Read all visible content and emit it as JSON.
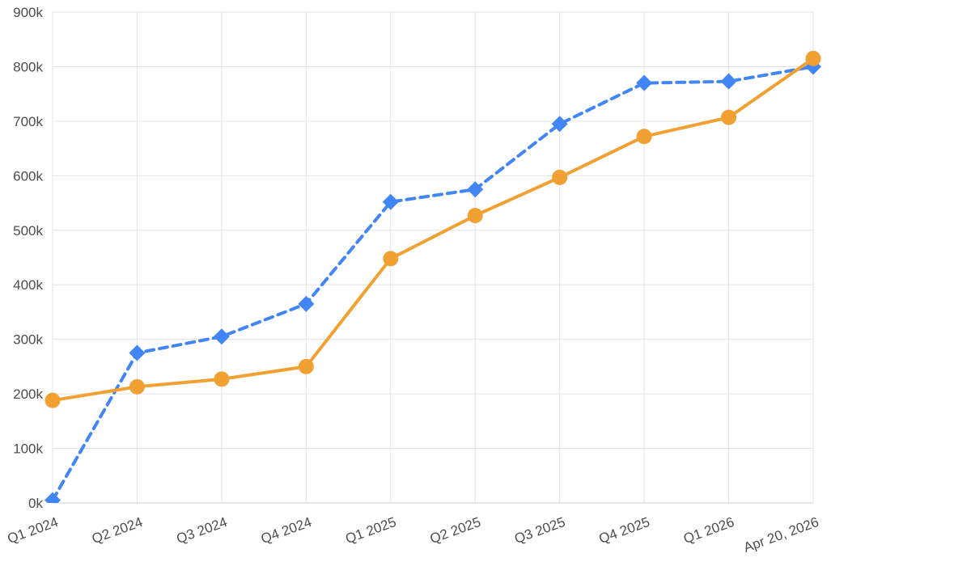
{
  "chart_data": {
    "type": "line",
    "title": "",
    "xlabel": "",
    "ylabel": "",
    "categories": [
      "Q1 2024",
      "Q2 2024",
      "Q3 2024",
      "Q4 2024",
      "Q1 2025",
      "Q2 2025",
      "Q3 2025",
      "Q4 2025",
      "Q1 2026",
      "Apr 20, 2026"
    ],
    "series": [
      {
        "name": "blue-dashed-series",
        "color": "#4285f4",
        "line_style": "dashed",
        "marker": "diamond",
        "values": [
          5000,
          275000,
          305000,
          365000,
          552000,
          575000,
          695000,
          770000,
          773000,
          800000
        ]
      },
      {
        "name": "orange-solid-series",
        "color": "#f0a132",
        "line_style": "solid",
        "marker": "circle",
        "values": [
          188000,
          213000,
          227000,
          250000,
          448000,
          527000,
          597000,
          672000,
          707000,
          815000
        ]
      }
    ],
    "ylim": [
      0,
      900000
    ],
    "y_tick_step": 100000,
    "y_tick_labels": [
      "0k",
      "100k",
      "200k",
      "300k",
      "400k",
      "500k",
      "600k",
      "700k",
      "800k",
      "900k"
    ],
    "grid": true,
    "legend": "none",
    "x_label_rotation": -20,
    "grid_color": "#e4e4e4",
    "axis_line_color": "#cfcfcf",
    "axis_text_color": "#4d4d4d",
    "background_color": "#ffffff"
  }
}
